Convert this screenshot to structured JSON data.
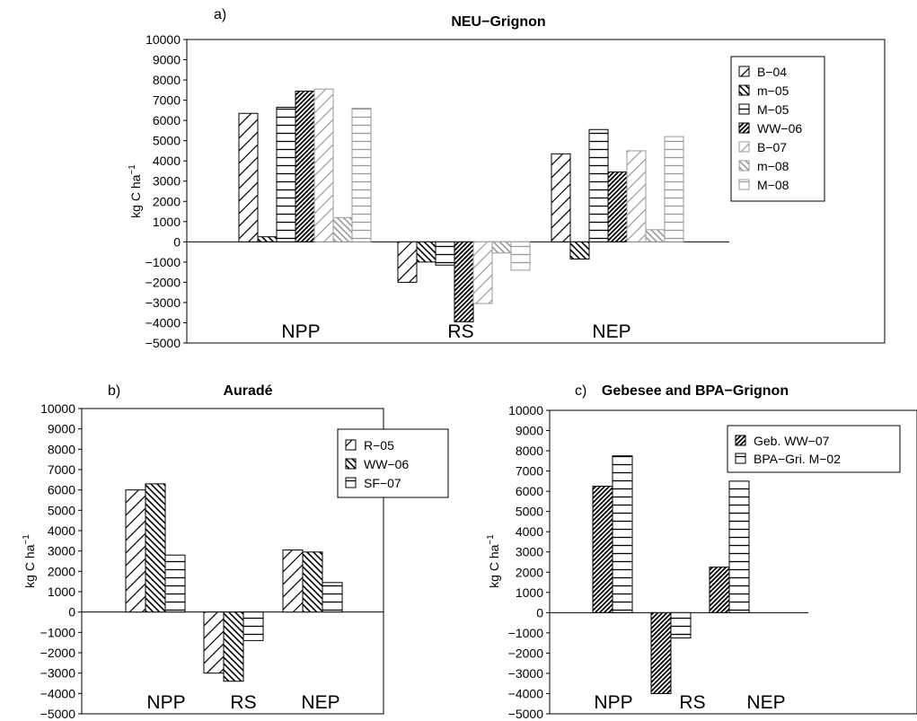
{
  "chart_data": [
    {
      "type": "bar",
      "panel_label": "a)",
      "title": "NEU−Grignon",
      "ylabel_main": "kg C ha",
      "ylabel_sup": "−1",
      "categories": [
        "NPP",
        "RS",
        "NEP"
      ],
      "ylim": [
        -5000,
        10000
      ],
      "yticks": [
        "10000",
        "9000",
        "8000",
        "7000",
        "6000",
        "5000",
        "4000",
        "3000",
        "2000",
        "1000",
        "0",
        "−1000",
        "−2000",
        "−3000",
        "−4000",
        "−5000"
      ],
      "ytick_values": [
        10000,
        9000,
        8000,
        7000,
        6000,
        5000,
        4000,
        3000,
        2000,
        1000,
        0,
        -1000,
        -2000,
        -3000,
        -4000,
        -5000
      ],
      "legend_position": "top-right",
      "series": [
        {
          "name": "B−04",
          "values": [
            6350,
            -2000,
            4350
          ],
          "pattern": "diag-fwd",
          "color": "#000000"
        },
        {
          "name": "m−05",
          "values": [
            250,
            -1000,
            -850
          ],
          "pattern": "diag-back",
          "color": "#000000"
        },
        {
          "name": "M−05",
          "values": [
            6650,
            -1150,
            5550
          ],
          "pattern": "horiz",
          "color": "#000000"
        },
        {
          "name": "WW−06",
          "values": [
            7450,
            -3950,
            3450
          ],
          "pattern": "diag-dense",
          "color": "#000000"
        },
        {
          "name": "B−07",
          "values": [
            7550,
            -3050,
            4500
          ],
          "pattern": "diag-fwd",
          "color": "#9a9a9a"
        },
        {
          "name": "m−08",
          "values": [
            1200,
            -550,
            600
          ],
          "pattern": "diag-back",
          "color": "#9a9a9a"
        },
        {
          "name": "M−08",
          "values": [
            6600,
            -1400,
            5200
          ],
          "pattern": "horiz",
          "color": "#9a9a9a"
        }
      ]
    },
    {
      "type": "bar",
      "panel_label": "b)",
      "title": "Auradé",
      "ylabel_main": "kg C ha",
      "ylabel_sup": "−1",
      "categories": [
        "NPP",
        "RS",
        "NEP"
      ],
      "ylim": [
        -5000,
        10000
      ],
      "yticks": [
        "10000",
        "9000",
        "8000",
        "7000",
        "6000",
        "5000",
        "4000",
        "3000",
        "2000",
        "1000",
        "0",
        "−1000",
        "−2000",
        "−3000",
        "−4000",
        "−5000"
      ],
      "ytick_values": [
        10000,
        9000,
        8000,
        7000,
        6000,
        5000,
        4000,
        3000,
        2000,
        1000,
        0,
        -1000,
        -2000,
        -3000,
        -4000,
        -5000
      ],
      "legend_position": "top-right",
      "series": [
        {
          "name": "R−05",
          "values": [
            6000,
            -3000,
            3050
          ],
          "pattern": "diag-fwd",
          "color": "#000000"
        },
        {
          "name": "WW−06",
          "values": [
            6300,
            -3400,
            2950
          ],
          "pattern": "diag-back",
          "color": "#000000"
        },
        {
          "name": "SF−07",
          "values": [
            2800,
            -1400,
            1450
          ],
          "pattern": "horiz",
          "color": "#000000"
        }
      ]
    },
    {
      "type": "bar",
      "panel_label": "c)",
      "title": "Gebesee and BPA−Grignon",
      "ylabel_main": "kg C ha",
      "ylabel_sup": "−1",
      "categories": [
        "NPP",
        "RS",
        "NEP"
      ],
      "ylim": [
        -5000,
        10000
      ],
      "yticks": [
        "10000",
        "9000",
        "8000",
        "7000",
        "6000",
        "5000",
        "4000",
        "3000",
        "2000",
        "1000",
        "0",
        "−1000",
        "−2000",
        "−3000",
        "−4000",
        "−5000"
      ],
      "ytick_values": [
        10000,
        9000,
        8000,
        7000,
        6000,
        5000,
        4000,
        3000,
        2000,
        1000,
        0,
        -1000,
        -2000,
        -3000,
        -4000,
        -5000
      ],
      "legend_position": "top-right",
      "series": [
        {
          "name": "Geb. WW−07",
          "values": [
            6250,
            -4000,
            2250
          ],
          "pattern": "diag-dense",
          "color": "#000000"
        },
        {
          "name": "BPA−Gri. M−02",
          "values": [
            7750,
            -1250,
            6500
          ],
          "pattern": "horiz",
          "color": "#000000"
        }
      ]
    }
  ]
}
